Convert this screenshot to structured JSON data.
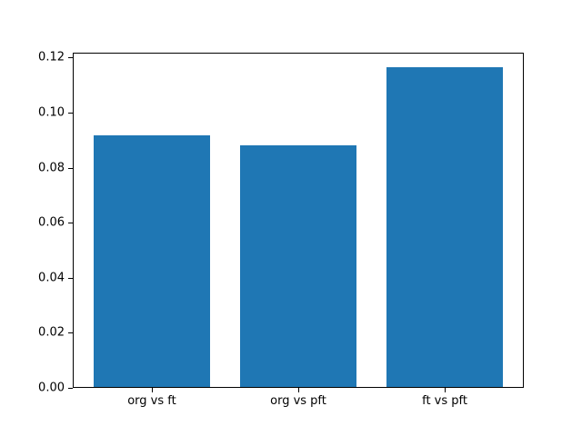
{
  "chart_data": {
    "type": "bar",
    "categories": [
      "org vs ft",
      "org vs pft",
      "ft vs pft"
    ],
    "values": [
      0.0915,
      0.0878,
      0.1161
    ],
    "title": "",
    "xlabel": "",
    "ylabel": "",
    "ylim": [
      0,
      0.1218
    ],
    "yticks": [
      0.0,
      0.02,
      0.04,
      0.06,
      0.08,
      0.1,
      0.12
    ],
    "yticklabels": [
      "0.00",
      "0.02",
      "0.04",
      "0.06",
      "0.08",
      "0.10",
      "0.12"
    ],
    "bar_color": "#1f77b4",
    "axis_color": "#000000",
    "background_color": "#ffffff",
    "grid": false,
    "legend_position": "none",
    "bar_width_fraction": 0.8
  }
}
